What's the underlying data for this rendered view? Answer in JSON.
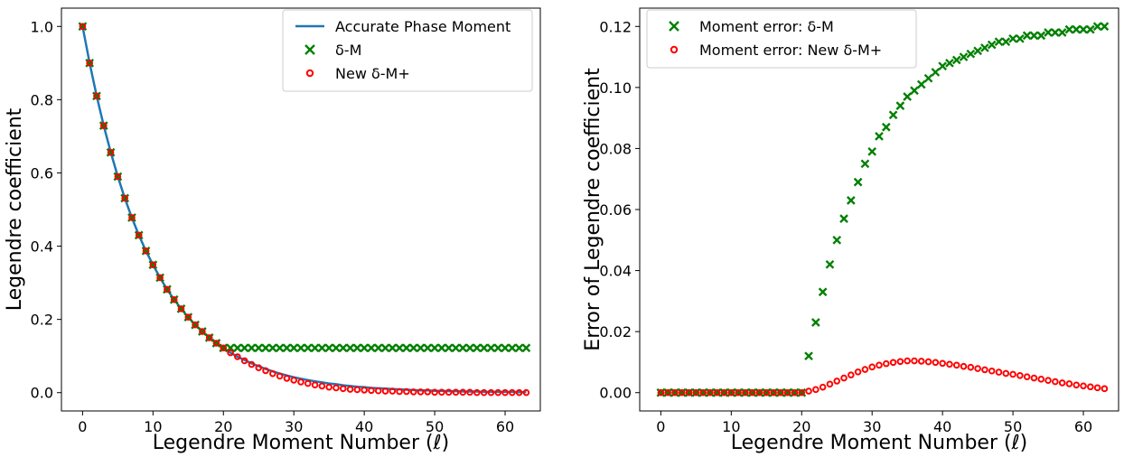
{
  "figure": {
    "panels": [
      {
        "id": "left",
        "xlabel": "Legendre Moment Number (ℓ)",
        "ylabel": "Legendre coefficient",
        "legend": [
          "Accurate Phase Moment",
          "δ-M",
          "New δ-M+"
        ]
      },
      {
        "id": "right",
        "xlabel": "Legendre Moment Number (ℓ)",
        "ylabel": "Error of Legendre coefficient",
        "legend": [
          "Moment error: δ-M",
          "Moment error: New δ-M+"
        ]
      }
    ]
  },
  "chart_data": [
    {
      "type": "line",
      "xlabel": "Legendre Moment Number (ℓ)",
      "ylabel": "Legendre coefficient",
      "xlim": [
        -3,
        65
      ],
      "ylim": [
        -0.05,
        1.05
      ],
      "xticks": [
        0,
        10,
        20,
        30,
        40,
        50,
        60
      ],
      "yticks": [
        0.0,
        0.2,
        0.4,
        0.6,
        0.8,
        1.0
      ],
      "tick_decimals": 1,
      "legend_position": "upper right",
      "grid": false,
      "x": [
        0,
        1,
        2,
        3,
        4,
        5,
        6,
        7,
        8,
        9,
        10,
        11,
        12,
        13,
        14,
        15,
        16,
        17,
        18,
        19,
        20,
        21,
        22,
        23,
        24,
        25,
        26,
        27,
        28,
        29,
        30,
        31,
        32,
        33,
        34,
        35,
        36,
        37,
        38,
        39,
        40,
        41,
        42,
        43,
        44,
        45,
        46,
        47,
        48,
        49,
        50,
        51,
        52,
        53,
        54,
        55,
        56,
        57,
        58,
        59,
        60,
        61,
        62,
        63
      ],
      "series": [
        {
          "name": "Accurate Phase Moment",
          "style": "line",
          "color": "#1f77b4",
          "values": [
            1.0,
            0.9,
            0.81,
            0.729,
            0.656,
            0.59,
            0.531,
            0.478,
            0.43,
            0.387,
            0.349,
            0.314,
            0.282,
            0.254,
            0.229,
            0.206,
            0.185,
            0.167,
            0.15,
            0.135,
            0.122,
            0.109,
            0.098,
            0.089,
            0.08,
            0.072,
            0.065,
            0.058,
            0.052,
            0.047,
            0.042,
            0.038,
            0.034,
            0.031,
            0.028,
            0.025,
            0.023,
            0.02,
            0.018,
            0.016,
            0.015,
            0.013,
            0.012,
            0.011,
            0.01,
            0.009,
            0.008,
            0.007,
            0.006,
            0.006,
            0.005,
            0.005,
            0.004,
            0.004,
            0.003,
            0.003,
            0.003,
            0.002,
            0.002,
            0.002,
            0.002,
            0.002,
            0.001,
            0.001
          ]
        },
        {
          "name": "δ-M",
          "style": "x",
          "color": "#008000",
          "values": [
            1.0,
            0.9,
            0.81,
            0.729,
            0.656,
            0.59,
            0.531,
            0.478,
            0.43,
            0.387,
            0.349,
            0.314,
            0.282,
            0.254,
            0.229,
            0.206,
            0.185,
            0.167,
            0.15,
            0.135,
            0.122,
            0.122,
            0.122,
            0.122,
            0.122,
            0.122,
            0.122,
            0.122,
            0.122,
            0.122,
            0.122,
            0.122,
            0.122,
            0.122,
            0.122,
            0.122,
            0.122,
            0.122,
            0.122,
            0.122,
            0.122,
            0.122,
            0.122,
            0.122,
            0.122,
            0.122,
            0.122,
            0.122,
            0.122,
            0.122,
            0.122,
            0.122,
            0.122,
            0.122,
            0.122,
            0.122,
            0.122,
            0.122,
            0.122,
            0.122,
            0.122,
            0.122,
            0.122,
            0.122
          ]
        },
        {
          "name": "New δ-M+",
          "style": "o",
          "color": "#ff0000",
          "values": [
            1.0,
            0.9,
            0.81,
            0.729,
            0.656,
            0.59,
            0.531,
            0.478,
            0.43,
            0.387,
            0.349,
            0.314,
            0.282,
            0.254,
            0.229,
            0.206,
            0.185,
            0.167,
            0.15,
            0.135,
            0.122,
            0.109,
            0.098,
            0.087,
            0.077,
            0.068,
            0.06,
            0.052,
            0.045,
            0.039,
            0.034,
            0.029,
            0.025,
            0.021,
            0.018,
            0.015,
            0.013,
            0.011,
            0.009,
            0.008,
            0.007,
            0.006,
            0.005,
            0.004,
            0.004,
            0.003,
            0.003,
            0.002,
            0.002,
            0.002,
            0.001,
            0.001,
            0.001,
            0.001,
            0.001,
            0.001,
            0.0,
            0.0,
            0.0,
            0.0,
            0.0,
            0.0,
            0.0,
            0.0
          ]
        }
      ]
    },
    {
      "type": "scatter",
      "xlabel": "Legendre Moment Number (ℓ)",
      "ylabel": "Error of Legendre coefficient",
      "xlim": [
        -3,
        65
      ],
      "ylim": [
        -0.006,
        0.126
      ],
      "xticks": [
        0,
        10,
        20,
        30,
        40,
        50,
        60
      ],
      "yticks": [
        0.0,
        0.02,
        0.04,
        0.06,
        0.08,
        0.1,
        0.12
      ],
      "tick_decimals": 2,
      "legend_position": "upper left",
      "grid": false,
      "x": [
        0,
        1,
        2,
        3,
        4,
        5,
        6,
        7,
        8,
        9,
        10,
        11,
        12,
        13,
        14,
        15,
        16,
        17,
        18,
        19,
        20,
        21,
        22,
        23,
        24,
        25,
        26,
        27,
        28,
        29,
        30,
        31,
        32,
        33,
        34,
        35,
        36,
        37,
        38,
        39,
        40,
        41,
        42,
        43,
        44,
        45,
        46,
        47,
        48,
        49,
        50,
        51,
        52,
        53,
        54,
        55,
        56,
        57,
        58,
        59,
        60,
        61,
        62,
        63
      ],
      "series": [
        {
          "name": "Moment error: δ-M",
          "style": "x",
          "color": "#008000",
          "values": [
            0,
            0,
            0,
            0,
            0,
            0,
            0,
            0,
            0,
            0,
            0,
            0,
            0,
            0,
            0,
            0,
            0,
            0,
            0,
            0,
            0,
            0.012,
            0.023,
            0.033,
            0.042,
            0.05,
            0.057,
            0.063,
            0.069,
            0.075,
            0.079,
            0.084,
            0.087,
            0.091,
            0.094,
            0.097,
            0.099,
            0.101,
            0.103,
            0.105,
            0.107,
            0.108,
            0.109,
            0.11,
            0.111,
            0.112,
            0.113,
            0.114,
            0.115,
            0.115,
            0.116,
            0.116,
            0.117,
            0.117,
            0.117,
            0.118,
            0.118,
            0.118,
            0.119,
            0.119,
            0.119,
            0.119,
            0.12,
            0.12
          ]
        },
        {
          "name": "Moment error: New δ-M+",
          "style": "o",
          "color": "#ff0000",
          "values": [
            0,
            0,
            0,
            0,
            0,
            0,
            0,
            0,
            0,
            0,
            0,
            0,
            0,
            0,
            0,
            0,
            0,
            0,
            0,
            0,
            0,
            0.0005,
            0.001,
            0.0018,
            0.0028,
            0.0038,
            0.0048,
            0.0058,
            0.0068,
            0.0076,
            0.0084,
            0.009,
            0.0095,
            0.0099,
            0.0102,
            0.0104,
            0.0104,
            0.0103,
            0.0101,
            0.0099,
            0.0096,
            0.0093,
            0.009,
            0.0086,
            0.0083,
            0.0079,
            0.0075,
            0.0071,
            0.0067,
            0.0063,
            0.006,
            0.0056,
            0.0052,
            0.0048,
            0.0044,
            0.004,
            0.0036,
            0.0032,
            0.0029,
            0.0025,
            0.0022,
            0.0019,
            0.0016,
            0.0013
          ]
        }
      ]
    }
  ]
}
